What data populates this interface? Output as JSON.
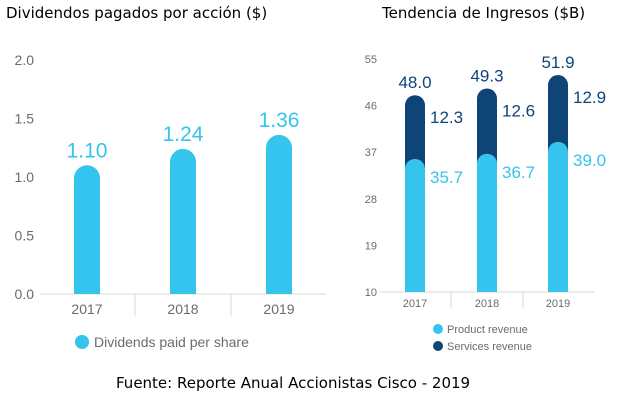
{
  "colors": {
    "light_blue": "#34C4EE",
    "dark_blue": "#0F4477",
    "axis": "#d9d9d9",
    "tick_text": "#6b6b6b"
  },
  "source_text": "Fuente: Reporte Anual Accionistas Cisco - 2019",
  "chart_data": [
    {
      "type": "bar",
      "title": "Dividendos pagados por acción ($)",
      "categories": [
        "2017",
        "2018",
        "2019"
      ],
      "series": [
        {
          "name": "Dividends paid per share",
          "values": [
            1.1,
            1.24,
            1.36
          ],
          "labels": [
            "1.10",
            "1.24",
            "1.36"
          ],
          "color": "#34C4EE"
        }
      ],
      "yticks": [
        "0.0",
        "0.5",
        "1.0",
        "1.5",
        "2.0"
      ],
      "ylim": [
        0,
        2.0
      ],
      "xlabel": "",
      "ylabel": "",
      "grid": false,
      "legend": "bottom"
    },
    {
      "type": "bar",
      "stacked": true,
      "title": "Tendencia de Ingresos ($B)",
      "categories": [
        "2017",
        "2018",
        "2019"
      ],
      "series": [
        {
          "name": "Product revenue",
          "values": [
            35.7,
            36.7,
            39.0
          ],
          "labels": [
            "35.7",
            "36.7",
            "39.0"
          ],
          "color": "#34C4EE"
        },
        {
          "name": "Services revenue",
          "values": [
            12.3,
            12.6,
            12.9
          ],
          "labels": [
            "12.3",
            "12.6",
            "12.9"
          ],
          "color": "#0F4477"
        }
      ],
      "totals": [
        48.0,
        49.3,
        51.9
      ],
      "total_labels": [
        "48.0",
        "49.3",
        "51.9"
      ],
      "yticks": [
        "10",
        "19",
        "28",
        "37",
        "46",
        "55"
      ],
      "ylim": [
        10,
        55
      ],
      "xlabel": "",
      "ylabel": "",
      "grid": false,
      "legend": "bottom"
    }
  ]
}
